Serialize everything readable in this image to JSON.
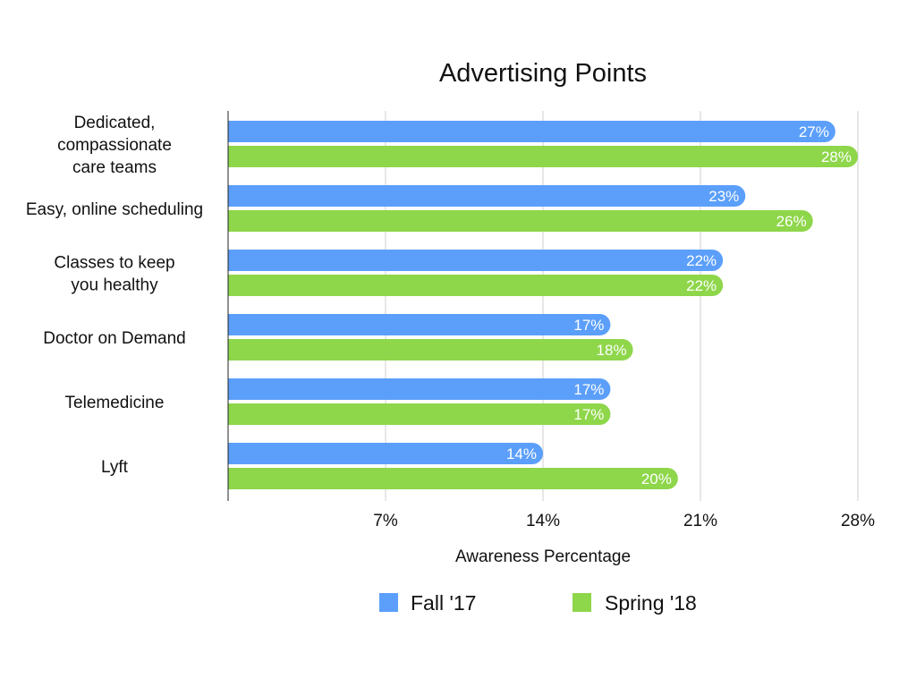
{
  "chart_data": {
    "type": "bar",
    "orientation": "horizontal",
    "title": "Advertising Points",
    "xlabel": "Awareness Percentage",
    "ylabel": "",
    "categories": [
      [
        "Dedicated,",
        "compassionate",
        "care teams"
      ],
      [
        "Easy, online scheduling"
      ],
      [
        "Classes to keep",
        "you healthy"
      ],
      [
        "Doctor on Demand"
      ],
      [
        "Telemedicine"
      ],
      [
        "Lyft"
      ]
    ],
    "series": [
      {
        "name": "Fall '17",
        "color": "#5B9FFB",
        "values": [
          27,
          23,
          22,
          17,
          17,
          14
        ]
      },
      {
        "name": "Spring '18",
        "color": "#8ED64A",
        "values": [
          28,
          26,
          22,
          18,
          17,
          20
        ]
      }
    ],
    "value_suffix": "%",
    "xlim": [
      0,
      28
    ],
    "xticks": [
      7,
      14,
      21,
      28
    ],
    "xtick_labels": [
      "7%",
      "14%",
      "21%",
      "28%"
    ],
    "grid": true,
    "legend_position": "bottom"
  }
}
